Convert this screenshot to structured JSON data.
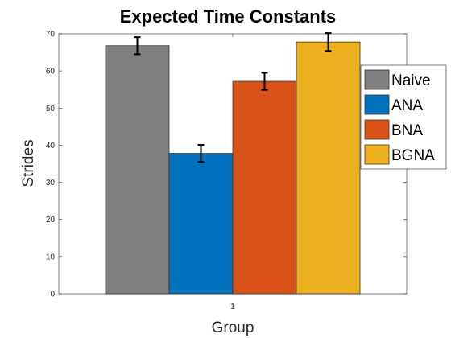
{
  "chart_data": {
    "type": "bar",
    "title": "Expected Time Constants",
    "xlabel": "Group",
    "ylabel": "Strides",
    "categories": [
      "1"
    ],
    "ylim": [
      0,
      70
    ],
    "yticks": [
      0,
      10,
      20,
      30,
      40,
      50,
      60,
      70
    ],
    "grid": false,
    "legend_position": "right",
    "series": [
      {
        "name": "Naive",
        "values": [
          66.8
        ],
        "error": [
          2.3
        ],
        "color": "#808080"
      },
      {
        "name": "ANA",
        "values": [
          37.8
        ],
        "error": [
          2.3
        ],
        "color": "#0072BD"
      },
      {
        "name": "BNA",
        "values": [
          57.2
        ],
        "error": [
          2.3
        ],
        "color": "#D95319"
      },
      {
        "name": "BGNA",
        "values": [
          67.8
        ],
        "error": [
          2.4
        ],
        "color": "#EDB120"
      }
    ]
  }
}
